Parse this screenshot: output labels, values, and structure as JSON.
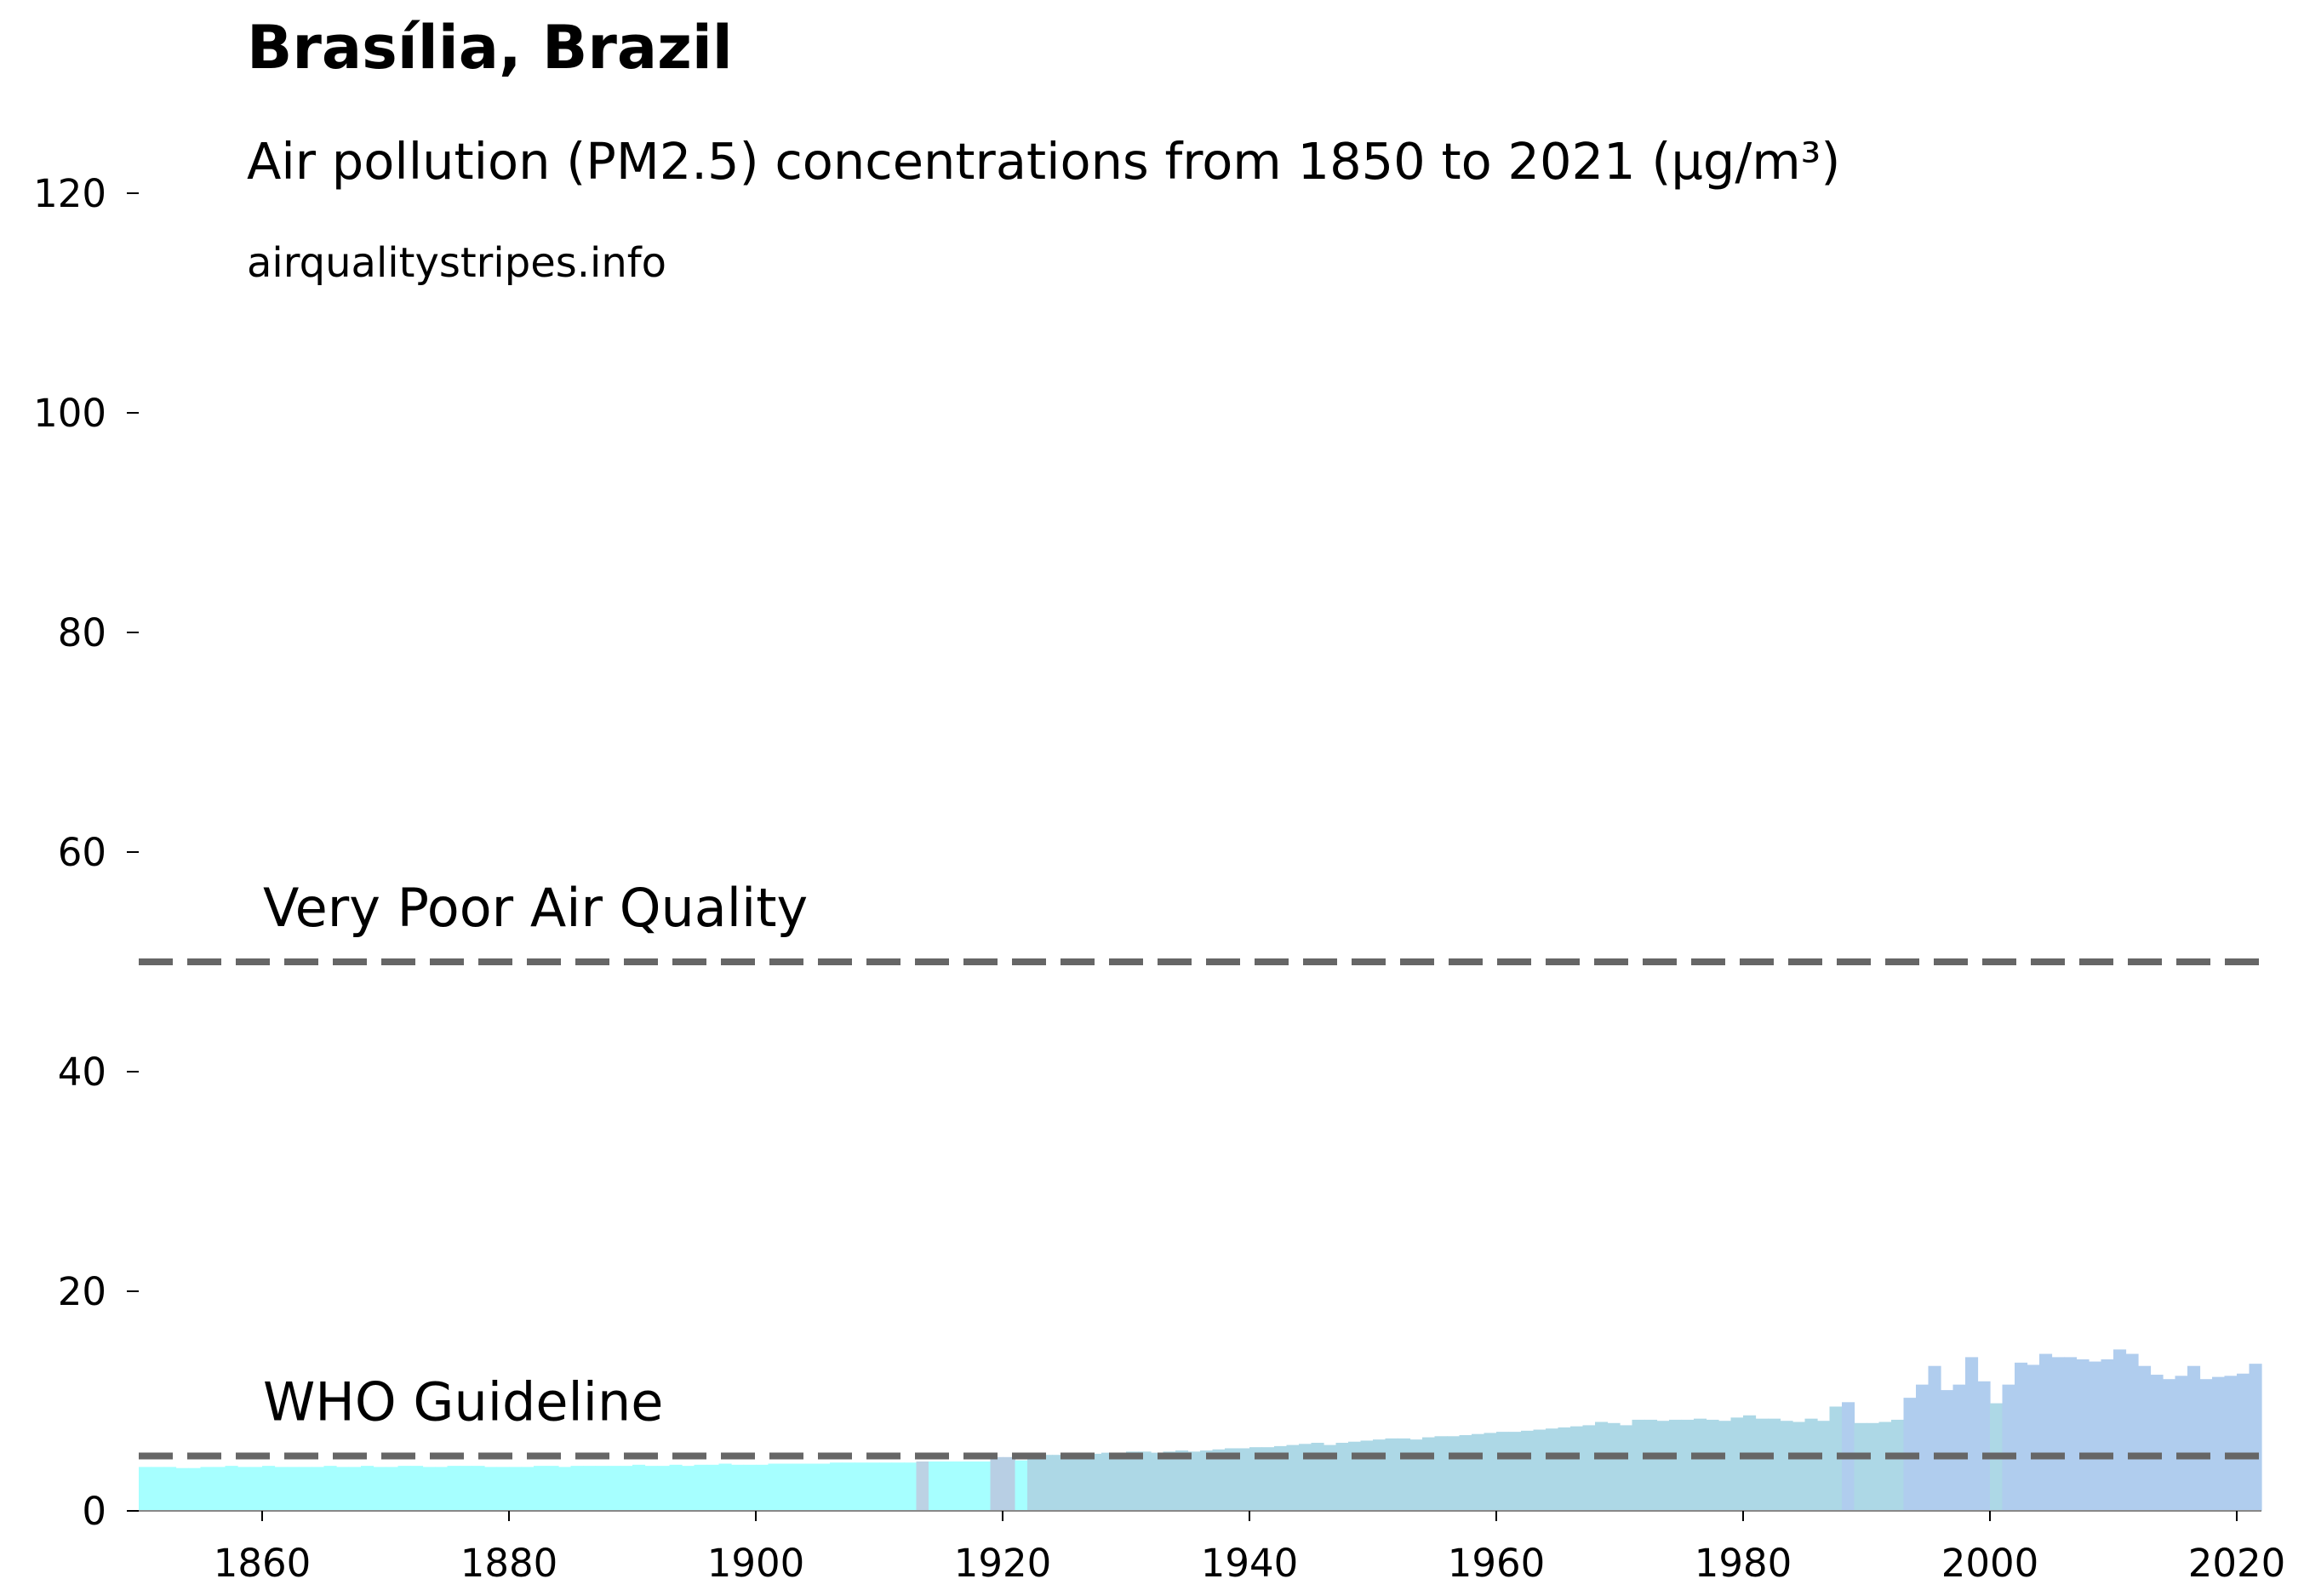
{
  "chart_data": {
    "type": "bar",
    "title": "Brasília, Brazil",
    "subtitle": "Air pollution (PM2.5) concentrations from 1850 to 2021 (µg/m³)",
    "source": "airqualitystripes.info",
    "x": [
      1850,
      1851,
      1852,
      1853,
      1854,
      1855,
      1856,
      1857,
      1858,
      1859,
      1860,
      1861,
      1862,
      1863,
      1864,
      1865,
      1866,
      1867,
      1868,
      1869,
      1870,
      1871,
      1872,
      1873,
      1874,
      1875,
      1876,
      1877,
      1878,
      1879,
      1880,
      1881,
      1882,
      1883,
      1884,
      1885,
      1886,
      1887,
      1888,
      1889,
      1890,
      1891,
      1892,
      1893,
      1894,
      1895,
      1896,
      1897,
      1898,
      1899,
      1900,
      1901,
      1902,
      1903,
      1904,
      1905,
      1906,
      1907,
      1908,
      1909,
      1910,
      1911,
      1912,
      1913,
      1914,
      1915,
      1916,
      1917,
      1918,
      1919,
      1920,
      1921,
      1922,
      1923,
      1924,
      1925,
      1926,
      1927,
      1928,
      1929,
      1930,
      1931,
      1932,
      1933,
      1934,
      1935,
      1936,
      1937,
      1938,
      1939,
      1940,
      1941,
      1942,
      1943,
      1944,
      1945,
      1946,
      1947,
      1948,
      1949,
      1950,
      1951,
      1952,
      1953,
      1954,
      1955,
      1956,
      1957,
      1958,
      1959,
      1960,
      1961,
      1962,
      1963,
      1964,
      1965,
      1966,
      1967,
      1968,
      1969,
      1970,
      1971,
      1972,
      1973,
      1974,
      1975,
      1976,
      1977,
      1978,
      1979,
      1980,
      1981,
      1982,
      1983,
      1984,
      1985,
      1986,
      1987,
      1988,
      1989,
      1990,
      1991,
      1992,
      1993,
      1994,
      1995,
      1996,
      1997,
      1998,
      1999,
      2000,
      2001,
      2002,
      2003,
      2004,
      2005,
      2006,
      2007,
      2008,
      2009,
      2010,
      2011,
      2012,
      2013,
      2014,
      2015,
      2016,
      2017,
      2018,
      2019,
      2020,
      2021
    ],
    "values": [
      4.0,
      4.0,
      4.0,
      3.9,
      3.9,
      4.0,
      4.0,
      4.1,
      4.0,
      4.0,
      4.1,
      4.0,
      4.0,
      4.0,
      4.0,
      4.1,
      4.0,
      4.0,
      4.1,
      4.0,
      4.0,
      4.1,
      4.1,
      4.0,
      4.0,
      4.1,
      4.1,
      4.1,
      4.0,
      4.0,
      4.0,
      4.0,
      4.1,
      4.1,
      4.0,
      4.1,
      4.1,
      4.1,
      4.1,
      4.1,
      4.2,
      4.1,
      4.1,
      4.2,
      4.1,
      4.2,
      4.2,
      4.3,
      4.2,
      4.2,
      4.2,
      4.3,
      4.3,
      4.3,
      4.3,
      4.3,
      4.4,
      4.4,
      4.4,
      4.4,
      4.4,
      4.4,
      4.4,
      4.5,
      4.5,
      4.5,
      4.5,
      4.5,
      4.5,
      4.9,
      4.9,
      4.6,
      5.0,
      5.1,
      5.1,
      5.2,
      5.2,
      5.2,
      5.3,
      5.3,
      5.4,
      5.4,
      5.3,
      5.4,
      5.5,
      5.4,
      5.5,
      5.6,
      5.7,
      5.7,
      5.8,
      5.8,
      5.9,
      6.0,
      6.1,
      6.2,
      6.0,
      6.2,
      6.3,
      6.4,
      6.5,
      6.6,
      6.6,
      6.5,
      6.7,
      6.8,
      6.8,
      6.9,
      7.0,
      7.1,
      7.2,
      7.2,
      7.3,
      7.4,
      7.5,
      7.6,
      7.7,
      7.8,
      8.1,
      8.0,
      7.8,
      8.3,
      8.3,
      8.2,
      8.3,
      8.3,
      8.4,
      8.3,
      8.2,
      8.5,
      8.7,
      8.4,
      8.4,
      8.2,
      8.1,
      8.4,
      8.2,
      9.5,
      9.9,
      8.0,
      8.0,
      8.1,
      8.3,
      10.3,
      11.5,
      13.2,
      11.0,
      11.5,
      14.0,
      11.8,
      9.8,
      11.5,
      13.5,
      13.3,
      14.3,
      14.0,
      14.0,
      13.8,
      13.6,
      13.8,
      14.7,
      14.3,
      13.2,
      12.4,
      12.0,
      12.3,
      13.2,
      12.0,
      12.2,
      12.3,
      12.5,
      13.4
    ],
    "colors": [
      "#a6ffff",
      "#a6ffff",
      "#a6ffff",
      "#a6ffff",
      "#a6ffff",
      "#a6ffff",
      "#a6ffff",
      "#a6ffff",
      "#a6ffff",
      "#a6ffff",
      "#a6ffff",
      "#a6ffff",
      "#a6ffff",
      "#a6ffff",
      "#a6ffff",
      "#a6ffff",
      "#a6ffff",
      "#a6ffff",
      "#a6ffff",
      "#a6ffff",
      "#a6ffff",
      "#a6ffff",
      "#a6ffff",
      "#a6ffff",
      "#a6ffff",
      "#a6ffff",
      "#a6ffff",
      "#a6ffff",
      "#a6ffff",
      "#a6ffff",
      "#a6ffff",
      "#a6ffff",
      "#a6ffff",
      "#a6ffff",
      "#a6ffff",
      "#a6ffff",
      "#a6ffff",
      "#a6ffff",
      "#a6ffff",
      "#a6ffff",
      "#a6ffff",
      "#a6ffff",
      "#a6ffff",
      "#a6ffff",
      "#a6ffff",
      "#a6ffff",
      "#a6ffff",
      "#a6ffff",
      "#a6ffff",
      "#a6ffff",
      "#a6ffff",
      "#a6ffff",
      "#a6ffff",
      "#a6ffff",
      "#a6ffff",
      "#a6ffff",
      "#a6ffff",
      "#a6ffff",
      "#a6ffff",
      "#a6ffff",
      "#a6ffff",
      "#a6ffff",
      "#a6ffff",
      "#bcd2e4",
      "#a6ffff",
      "#a6ffff",
      "#a6ffff",
      "#a6ffff",
      "#a6ffff",
      "#b8cfe4",
      "#b8cfe4",
      "#a6ffff",
      "#add8e6",
      "#add8e6",
      "#add8e6",
      "#add8e6",
      "#add8e6",
      "#add8e6",
      "#add8e6",
      "#add8e6",
      "#add8e6",
      "#add8e6",
      "#add8e6",
      "#add8e6",
      "#add8e6",
      "#add8e6",
      "#add8e6",
      "#add8e6",
      "#add8e6",
      "#add8e6",
      "#add8e6",
      "#add8e6",
      "#add8e6",
      "#add8e6",
      "#add8e6",
      "#add8e6",
      "#add8e6",
      "#add8e6",
      "#add8e6",
      "#add8e6",
      "#add8e6",
      "#add8e6",
      "#add8e6",
      "#add8e6",
      "#add8e6",
      "#add8e6",
      "#add8e6",
      "#add8e6",
      "#add8e6",
      "#add8e6",
      "#add8e6",
      "#add8e6",
      "#add8e6",
      "#add8e6",
      "#add8e6",
      "#add8e6",
      "#add8e6",
      "#add8e6",
      "#add8e6",
      "#add8e6",
      "#add8e6",
      "#add8e6",
      "#add8e6",
      "#add8e6",
      "#add8e6",
      "#add8e6",
      "#add8e6",
      "#add8e6",
      "#add8e6",
      "#add8e6",
      "#add8e6",
      "#add8e6",
      "#add8e6",
      "#add8e6",
      "#add8e6",
      "#add8e6",
      "#add8e6",
      "#add8e6",
      "#b0cdee",
      "#add8e6",
      "#add8e6",
      "#add8e6",
      "#add8e6",
      "#b0cdee",
      "#b0cdee",
      "#b0cdee",
      "#b0cdee",
      "#b0cdee",
      "#b0cdee",
      "#b0cdee",
      "#add8e6",
      "#b0cdee",
      "#b0cdee",
      "#b0cdee",
      "#b0cdee",
      "#b0cdee",
      "#b0cdee",
      "#b0cdee",
      "#b0cdee",
      "#b0cdee",
      "#b0cdee",
      "#b0cdee",
      "#b0cdee",
      "#b0cdee",
      "#b0cdee",
      "#b0cdee",
      "#b0cdee",
      "#b0cdee",
      "#b0cdee",
      "#b0cdee",
      "#b0cdee",
      "#b0cdee"
    ],
    "xlim": [
      1850,
      2022
    ],
    "xticks": [
      1860,
      1880,
      1900,
      1920,
      1940,
      1960,
      1980,
      2000,
      2020
    ],
    "ylim": [
      0,
      120
    ],
    "yticks": [
      0,
      20,
      40,
      60,
      80,
      100,
      120
    ],
    "annotations": [
      {
        "text": "Very Poor Air Quality",
        "value": 50
      },
      {
        "text": "WHO Guideline",
        "value": 5
      }
    ],
    "line_color": "#666666"
  }
}
